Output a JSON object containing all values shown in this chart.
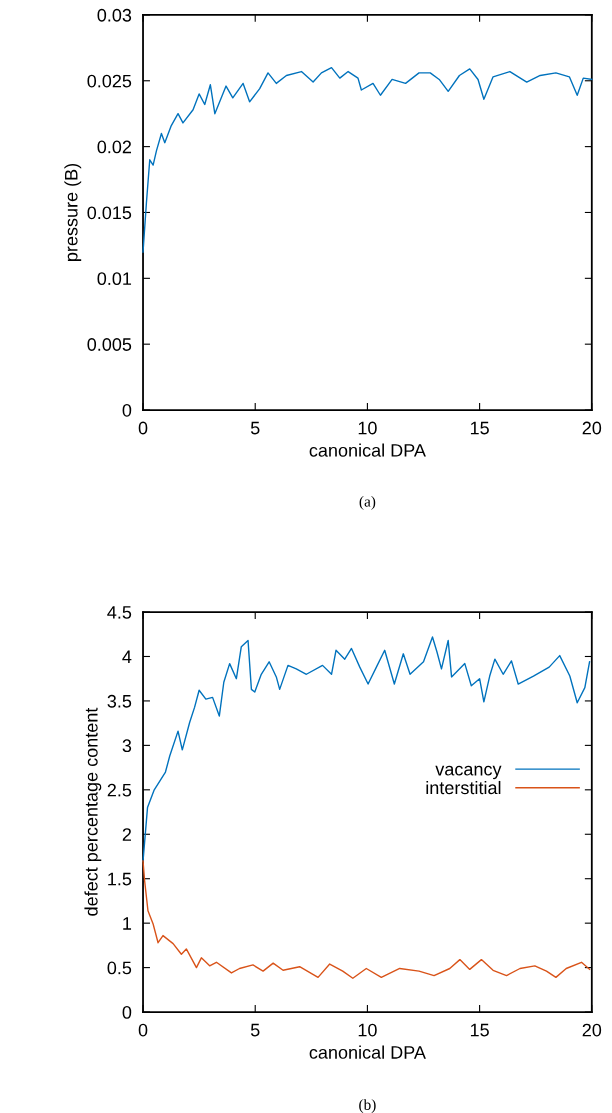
{
  "chart_data": [
    {
      "type": "line",
      "xlabel": "canonical DPA",
      "ylabel": "pressure (B)",
      "annotations": [
        "(a)"
      ],
      "xlim": [
        0,
        20
      ],
      "xticks": [
        0,
        5,
        10,
        15,
        20
      ],
      "ylim": [
        0,
        0.03
      ],
      "yticks": [
        0,
        0.005,
        0.01,
        0.015,
        0.02,
        0.025,
        0.03
      ],
      "grid": false,
      "legend": false,
      "series": [
        {
          "color": "#0072bd",
          "x": [
            0,
            0.15,
            0.3,
            0.45,
            0.6,
            0.82,
            0.97,
            1.26,
            1.56,
            1.78,
            2.23,
            2.5,
            2.75,
            3.0,
            3.2,
            3.7,
            4.0,
            4.46,
            4.75,
            5.2,
            5.57,
            5.94,
            6.39,
            7.06,
            7.58,
            7.95,
            8.4,
            8.77,
            9.14,
            9.58,
            9.73,
            10.25,
            10.58,
            11.1,
            11.7,
            12.3,
            12.8,
            13.2,
            13.6,
            14.1,
            14.56,
            14.93,
            15.19,
            15.6,
            16.35,
            17.1,
            17.7,
            18.4,
            19.0,
            19.35,
            19.62,
            20
          ],
          "values": [
            0.012,
            0.0157,
            0.019,
            0.0186,
            0.0197,
            0.021,
            0.0203,
            0.0216,
            0.0225,
            0.0218,
            0.0228,
            0.024,
            0.0232,
            0.0247,
            0.0225,
            0.0246,
            0.0237,
            0.0248,
            0.0234,
            0.0244,
            0.0256,
            0.0248,
            0.0254,
            0.0257,
            0.0249,
            0.0256,
            0.026,
            0.0252,
            0.0257,
            0.0252,
            0.0243,
            0.0248,
            0.0239,
            0.0251,
            0.0248,
            0.0256,
            0.0256,
            0.0251,
            0.0242,
            0.0254,
            0.0259,
            0.0251,
            0.0236,
            0.0253,
            0.0257,
            0.0249,
            0.0254,
            0.0256,
            0.0253,
            0.0239,
            0.0252,
            0.0251
          ]
        }
      ]
    },
    {
      "type": "line",
      "xlabel": "canonical DPA",
      "ylabel": "defect percentage content",
      "annotations": [
        "(b)"
      ],
      "xlim": [
        0,
        20
      ],
      "xticks": [
        0,
        5,
        10,
        15,
        20
      ],
      "ylim": [
        0,
        4.5
      ],
      "yticks": [
        0,
        0.5,
        1,
        1.5,
        2,
        2.5,
        3,
        3.5,
        4,
        4.5
      ],
      "grid": false,
      "legend": "right",
      "series": [
        {
          "name": "vacancy",
          "color": "#0072bd",
          "x": [
            0,
            0.2,
            0.5,
            1.0,
            1.19,
            1.56,
            1.75,
            2.08,
            2.3,
            2.5,
            2.8,
            3.1,
            3.4,
            3.6,
            3.86,
            4.16,
            4.38,
            4.68,
            4.83,
            4.98,
            5.27,
            5.62,
            5.94,
            6.09,
            6.46,
            6.83,
            7.28,
            8.0,
            8.4,
            8.6,
            8.99,
            9.29,
            9.66,
            10.03,
            10.4,
            10.77,
            11.2,
            11.6,
            11.9,
            12.5,
            12.9,
            13.1,
            13.3,
            13.6,
            13.75,
            14.34,
            14.63,
            15.0,
            15.19,
            15.45,
            15.68,
            16.05,
            16.42,
            16.72,
            17.4,
            18.1,
            18.57,
            19.02,
            19.35,
            19.69,
            19.9
          ],
          "values": [
            1.7,
            2.3,
            2.5,
            2.7,
            2.88,
            3.16,
            2.95,
            3.26,
            3.43,
            3.62,
            3.52,
            3.54,
            3.33,
            3.71,
            3.92,
            3.75,
            4.11,
            4.18,
            3.63,
            3.6,
            3.8,
            3.94,
            3.77,
            3.63,
            3.9,
            3.86,
            3.8,
            3.9,
            3.8,
            4.07,
            3.97,
            4.09,
            3.88,
            3.69,
            3.88,
            4.07,
            3.69,
            4.03,
            3.8,
            3.94,
            4.22,
            4.05,
            3.86,
            4.18,
            3.77,
            3.92,
            3.67,
            3.75,
            3.49,
            3.78,
            3.97,
            3.8,
            3.95,
            3.69,
            3.78,
            3.88,
            4.01,
            3.78,
            3.48,
            3.65,
            3.94
          ]
        },
        {
          "name": "interstitial",
          "color": "#d95319",
          "x": [
            0,
            0.07,
            0.22,
            0.45,
            0.67,
            0.89,
            1.34,
            1.71,
            1.93,
            2.38,
            2.6,
            2.97,
            3.27,
            3.94,
            4.3,
            4.9,
            5.35,
            5.8,
            6.24,
            6.98,
            7.8,
            8.32,
            8.9,
            9.35,
            9.95,
            10.62,
            11.44,
            12.3,
            12.97,
            13.67,
            14.12,
            14.56,
            15.08,
            15.6,
            16.2,
            16.8,
            17.46,
            17.98,
            18.4,
            18.86,
            19.54,
            19.9
          ],
          "values": [
            1.7,
            1.48,
            1.14,
            0.99,
            0.78,
            0.86,
            0.77,
            0.65,
            0.71,
            0.5,
            0.61,
            0.52,
            0.56,
            0.44,
            0.49,
            0.53,
            0.46,
            0.55,
            0.47,
            0.51,
            0.39,
            0.54,
            0.46,
            0.38,
            0.49,
            0.39,
            0.49,
            0.46,
            0.41,
            0.49,
            0.59,
            0.48,
            0.59,
            0.47,
            0.41,
            0.49,
            0.52,
            0.46,
            0.39,
            0.49,
            0.56,
            0.48
          ]
        }
      ]
    }
  ]
}
